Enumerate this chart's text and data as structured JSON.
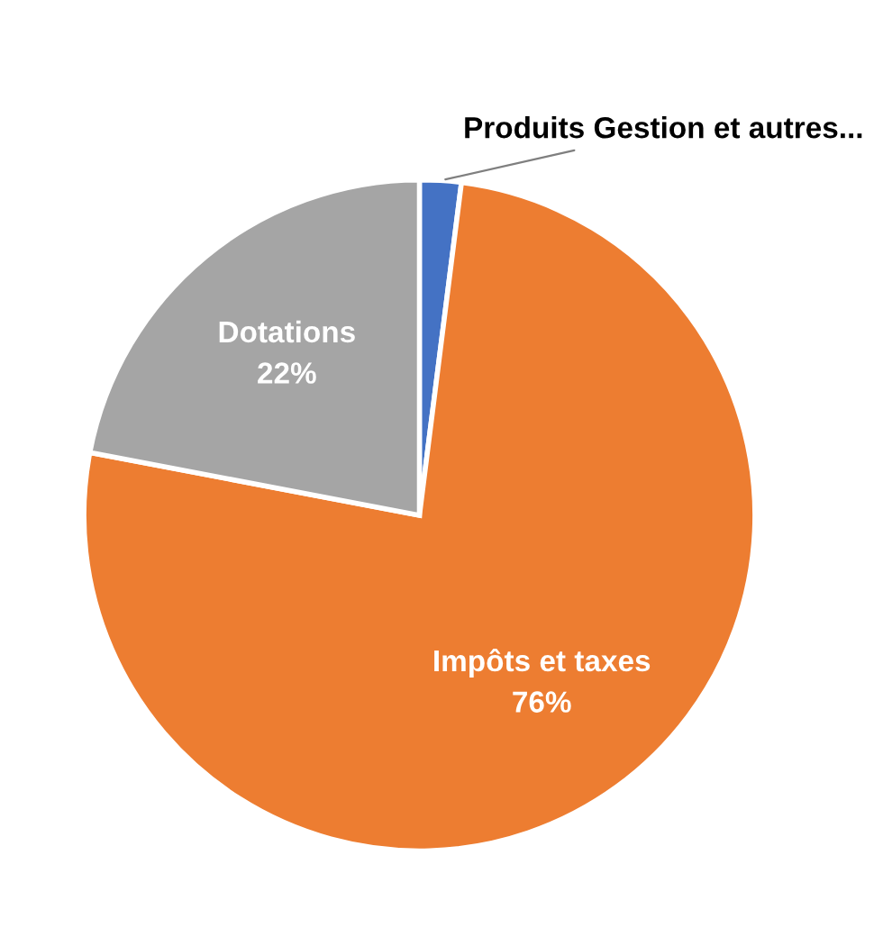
{
  "chart_data": {
    "type": "pie",
    "categories": [
      "Produits Gestion et autres...",
      "Impôts et taxes",
      "Dotations"
    ],
    "values": [
      2,
      76,
      22
    ],
    "colors": [
      "#4472c4",
      "#ed7d31",
      "#a5a5a5"
    ],
    "value_labels": [
      null,
      "76%",
      "22%"
    ]
  }
}
